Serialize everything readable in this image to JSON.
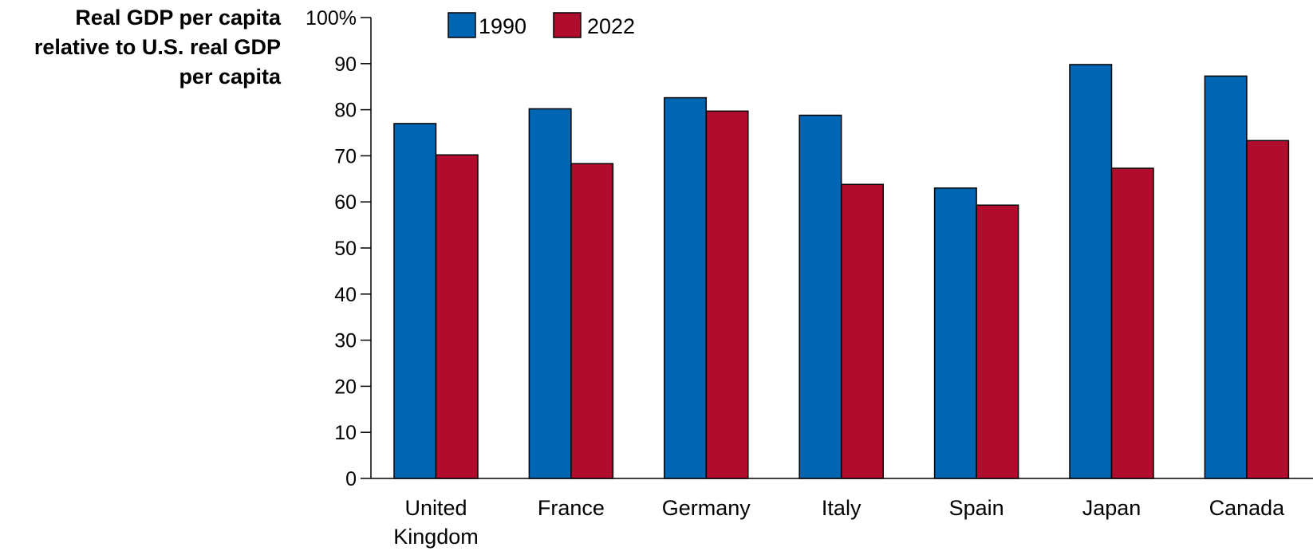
{
  "chart_data": {
    "type": "bar",
    "ylabel_lines": [
      "Real GDP per capita",
      "relative to U.S. real GDP",
      "per capita"
    ],
    "ylim": [
      0,
      100
    ],
    "yticks": [
      0,
      10,
      20,
      30,
      40,
      50,
      60,
      70,
      80,
      90,
      100
    ],
    "ytick_labels": [
      "0",
      "10",
      "20",
      "30",
      "40",
      "50",
      "60",
      "70",
      "80",
      "90",
      "100%"
    ],
    "categories": [
      [
        "United",
        "Kingdom"
      ],
      [
        "France"
      ],
      [
        "Germany"
      ],
      [
        "Italy"
      ],
      [
        "Spain"
      ],
      [
        "Japan"
      ],
      [
        "Canada"
      ]
    ],
    "series": [
      {
        "name": "1990",
        "color": "#0066b3",
        "values": [
          77,
          80.2,
          82.6,
          78.8,
          63,
          89.8,
          87.3
        ]
      },
      {
        "name": "2022",
        "color": "#b00c2e",
        "values": [
          70.2,
          68.3,
          79.7,
          63.8,
          59.3,
          67.3,
          73.3
        ]
      }
    ],
    "legend_position": "top",
    "grid": false
  }
}
